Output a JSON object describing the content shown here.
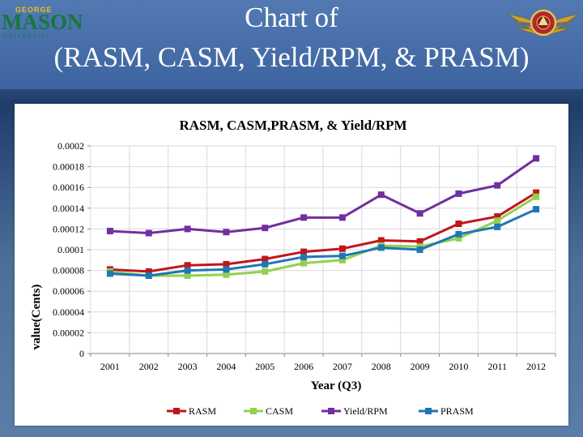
{
  "slide": {
    "title_line1": "Chart of",
    "title_line2": "(RASM, CASM, Yield/RPM, & PRASM)",
    "logo_left": {
      "line1": "GEORGE",
      "line2": "MASON",
      "line3": "UNIVERSITY"
    }
  },
  "colors": {
    "RASM": "#c0161c",
    "CASM": "#92d050",
    "Yield/RPM": "#7030a0",
    "PRASM": "#1f77b4"
  },
  "chart_data": {
    "type": "line",
    "title": "RASM, CASM,PRASM, & Yield/RPM",
    "xlabel": "Year (Q3)",
    "ylabel": "value(Cents)",
    "ylim": [
      0,
      0.0002
    ],
    "yticks": [
      "0",
      "0.00002",
      "0.00004",
      "0.00006",
      "0.00008",
      "0.0001",
      "0.00012",
      "0.00014",
      "0.00016",
      "0.00018",
      "0.0002"
    ],
    "grid": true,
    "legend": "bottom",
    "categories": [
      "2001",
      "2002",
      "2003",
      "2004",
      "2005",
      "2006",
      "2007",
      "2008",
      "2009",
      "2010",
      "2011",
      "2012"
    ],
    "series": [
      {
        "name": "RASM",
        "values": [
          8.1e-05,
          7.9e-05,
          8.5e-05,
          8.6e-05,
          9.1e-05,
          9.8e-05,
          0.000101,
          0.000109,
          0.000108,
          0.000125,
          0.000132,
          0.000155
        ]
      },
      {
        "name": "CASM",
        "values": [
          7.9e-05,
          7.5e-05,
          7.5e-05,
          7.6e-05,
          7.9e-05,
          8.7e-05,
          9e-05,
          0.000104,
          0.000103,
          0.000111,
          0.000128,
          0.000151
        ]
      },
      {
        "name": "Yield/RPM",
        "values": [
          0.000118,
          0.000116,
          0.00012,
          0.000117,
          0.000121,
          0.000131,
          0.000131,
          0.000153,
          0.000135,
          0.000154,
          0.000162,
          0.000188
        ]
      },
      {
        "name": "PRASM",
        "values": [
          7.7e-05,
          7.5e-05,
          8e-05,
          8.1e-05,
          8.6e-05,
          9.3e-05,
          9.4e-05,
          0.000102,
          0.0001,
          0.000115,
          0.000122,
          0.000139
        ]
      }
    ]
  }
}
